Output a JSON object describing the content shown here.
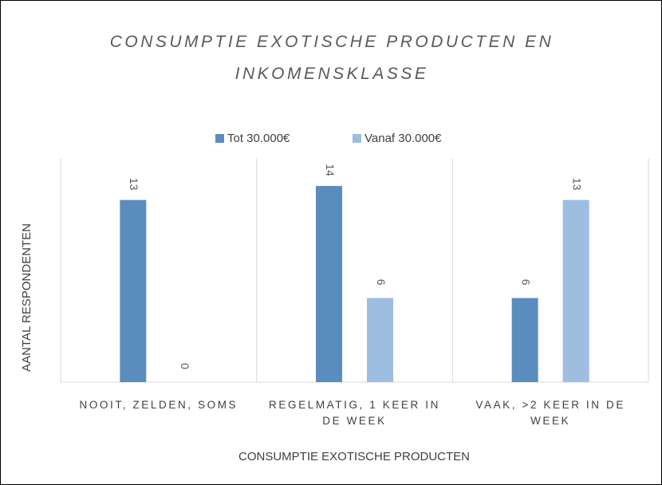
{
  "chart_data": {
    "type": "bar",
    "title": "CONSUMPTIE EXOTISCHE PRODUCTEN EN INKOMENSKLASSE",
    "x_label": "CONSUMPTIE EXOTISCHE PRODUCTEN",
    "y_label": "AANTAL RESPONDENTEN",
    "categories": [
      "NOOIT, ZELDEN, SOMS",
      "REGELMATIG, 1 KEER IN DE WEEK",
      "VAAK, >2 KEER IN DE WEEK"
    ],
    "series": [
      {
        "name": "Tot 30.000€",
        "color": "#5b8cbf",
        "values": [
          13,
          14,
          6
        ]
      },
      {
        "name": "Vanaf 30.000€",
        "color": "#9dbde1",
        "values": [
          0,
          6,
          13
        ]
      }
    ],
    "ylim": [
      0,
      16
    ],
    "legend": "top"
  }
}
